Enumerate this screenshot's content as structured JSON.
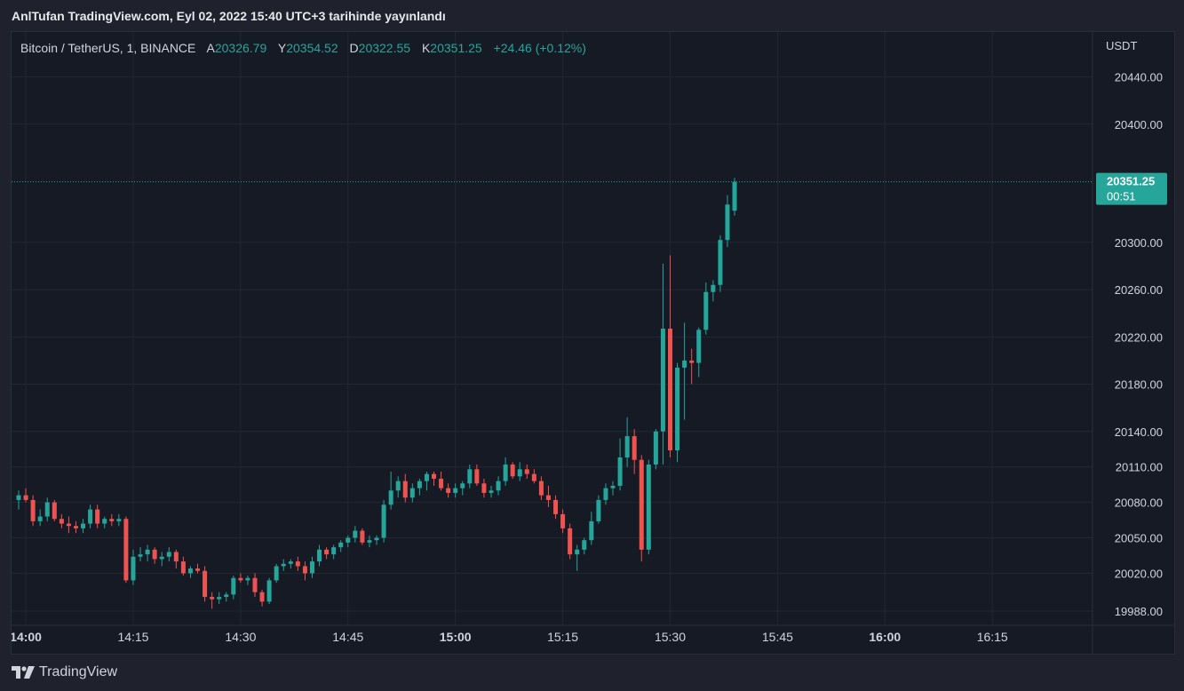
{
  "header": {
    "published_text": "AnlTufan TradingView.com, Eyl 02, 2022 15:40 UTC+3 tarihinde yayınlandı"
  },
  "symbol": {
    "name": "Bitcoin / TetherUS, 1, BINANCE",
    "open_label": "A",
    "open_value": "20326.79",
    "high_label": "Y",
    "high_value": "20354.52",
    "low_label": "D",
    "low_value": "20322.55",
    "close_label": "K",
    "close_value": "20351.25",
    "change": "+24.46 (+0.12%)"
  },
  "price_axis": {
    "currency": "USDT",
    "last_price": "20351.25",
    "countdown": "00:51"
  },
  "footer": {
    "brand": "TradingView"
  },
  "colors": {
    "up": "#26a69a",
    "down": "#ef5350",
    "grid": "#232733",
    "background": "#161a25",
    "last_price_line": "#26a69a"
  },
  "chart_data": {
    "type": "candlestick",
    "interval_minutes": 1,
    "ylim": [
      19976,
      20478
    ],
    "y_ticks": [
      "20440.00",
      "20400.00",
      "20300.00",
      "20260.00",
      "20220.00",
      "20180.00",
      "20140.00",
      "20110.00",
      "20080.00",
      "20050.00",
      "20020.00",
      "19988.00"
    ],
    "x_ticks": [
      {
        "time": "14:00",
        "bold": true
      },
      {
        "time": "14:15",
        "bold": false
      },
      {
        "time": "14:30",
        "bold": false
      },
      {
        "time": "14:45",
        "bold": false
      },
      {
        "time": "15:00",
        "bold": true
      },
      {
        "time": "15:15",
        "bold": false
      },
      {
        "time": "15:30",
        "bold": false
      },
      {
        "time": "15:45",
        "bold": false
      },
      {
        "time": "16:00",
        "bold": true
      },
      {
        "time": "16:15",
        "bold": false
      }
    ],
    "x_start": "13:59",
    "x_end": "16:28",
    "candles": [
      {
        "t": "13:59",
        "o": 20082,
        "h": 20090,
        "l": 20074,
        "c": 20086
      },
      {
        "t": "14:00",
        "o": 20086,
        "h": 20092,
        "l": 20080,
        "c": 20082
      },
      {
        "t": "14:01",
        "o": 20082,
        "h": 20086,
        "l": 20060,
        "c": 20064
      },
      {
        "t": "14:02",
        "o": 20064,
        "h": 20074,
        "l": 20060,
        "c": 20068
      },
      {
        "t": "14:03",
        "o": 20068,
        "h": 20084,
        "l": 20064,
        "c": 20080
      },
      {
        "t": "14:04",
        "o": 20080,
        "h": 20082,
        "l": 20064,
        "c": 20066
      },
      {
        "t": "14:05",
        "o": 20066,
        "h": 20070,
        "l": 20058,
        "c": 20062
      },
      {
        "t": "14:06",
        "o": 20062,
        "h": 20068,
        "l": 20054,
        "c": 20060
      },
      {
        "t": "14:07",
        "o": 20060,
        "h": 20064,
        "l": 20054,
        "c": 20058
      },
      {
        "t": "14:08",
        "o": 20058,
        "h": 20066,
        "l": 20054,
        "c": 20062
      },
      {
        "t": "14:09",
        "o": 20062,
        "h": 20078,
        "l": 20058,
        "c": 20074
      },
      {
        "t": "14:10",
        "o": 20074,
        "h": 20078,
        "l": 20058,
        "c": 20062
      },
      {
        "t": "14:11",
        "o": 20062,
        "h": 20068,
        "l": 20058,
        "c": 20066
      },
      {
        "t": "14:12",
        "o": 20066,
        "h": 20070,
        "l": 20060,
        "c": 20064
      },
      {
        "t": "14:13",
        "o": 20064,
        "h": 20070,
        "l": 20060,
        "c": 20066
      },
      {
        "t": "14:14",
        "o": 20066,
        "h": 20068,
        "l": 20012,
        "c": 20014
      },
      {
        "t": "14:15",
        "o": 20014,
        "h": 20040,
        "l": 20010,
        "c": 20034
      },
      {
        "t": "14:16",
        "o": 20034,
        "h": 20042,
        "l": 20030,
        "c": 20036
      },
      {
        "t": "14:17",
        "o": 20036,
        "h": 20044,
        "l": 20030,
        "c": 20040
      },
      {
        "t": "14:18",
        "o": 20040,
        "h": 20042,
        "l": 20028,
        "c": 20032
      },
      {
        "t": "14:19",
        "o": 20032,
        "h": 20038,
        "l": 20026,
        "c": 20034
      },
      {
        "t": "14:20",
        "o": 20034,
        "h": 20042,
        "l": 20030,
        "c": 20038
      },
      {
        "t": "14:21",
        "o": 20038,
        "h": 20040,
        "l": 20024,
        "c": 20030
      },
      {
        "t": "14:22",
        "o": 20030,
        "h": 20034,
        "l": 20018,
        "c": 20020
      },
      {
        "t": "14:23",
        "o": 20020,
        "h": 20026,
        "l": 20016,
        "c": 20024
      },
      {
        "t": "14:24",
        "o": 20024,
        "h": 20028,
        "l": 20020,
        "c": 20022
      },
      {
        "t": "14:25",
        "o": 20022,
        "h": 20026,
        "l": 19996,
        "c": 20000
      },
      {
        "t": "14:26",
        "o": 20000,
        "h": 20004,
        "l": 19990,
        "c": 19998
      },
      {
        "t": "14:27",
        "o": 19998,
        "h": 20004,
        "l": 19994,
        "c": 20000
      },
      {
        "t": "14:28",
        "o": 20000,
        "h": 20004,
        "l": 19996,
        "c": 20002
      },
      {
        "t": "14:29",
        "o": 20002,
        "h": 20018,
        "l": 19998,
        "c": 20016
      },
      {
        "t": "14:30",
        "o": 20016,
        "h": 20020,
        "l": 20012,
        "c": 20014
      },
      {
        "t": "14:31",
        "o": 20014,
        "h": 20018,
        "l": 20010,
        "c": 20016
      },
      {
        "t": "14:32",
        "o": 20016,
        "h": 20020,
        "l": 20000,
        "c": 20004
      },
      {
        "t": "14:33",
        "o": 20004,
        "h": 20006,
        "l": 19992,
        "c": 19996
      },
      {
        "t": "14:34",
        "o": 19996,
        "h": 20016,
        "l": 19994,
        "c": 20014
      },
      {
        "t": "14:35",
        "o": 20014,
        "h": 20028,
        "l": 20012,
        "c": 20026
      },
      {
        "t": "14:36",
        "o": 20026,
        "h": 20032,
        "l": 20022,
        "c": 20028
      },
      {
        "t": "14:37",
        "o": 20028,
        "h": 20032,
        "l": 20024,
        "c": 20030
      },
      {
        "t": "14:38",
        "o": 20030,
        "h": 20034,
        "l": 20022,
        "c": 20026
      },
      {
        "t": "14:39",
        "o": 20026,
        "h": 20030,
        "l": 20014,
        "c": 20020
      },
      {
        "t": "14:40",
        "o": 20020,
        "h": 20034,
        "l": 20016,
        "c": 20030
      },
      {
        "t": "14:41",
        "o": 20030,
        "h": 20044,
        "l": 20026,
        "c": 20040
      },
      {
        "t": "14:42",
        "o": 20040,
        "h": 20042,
        "l": 20032,
        "c": 20036
      },
      {
        "t": "14:43",
        "o": 20036,
        "h": 20044,
        "l": 20032,
        "c": 20042
      },
      {
        "t": "14:44",
        "o": 20042,
        "h": 20048,
        "l": 20038,
        "c": 20046
      },
      {
        "t": "14:45",
        "o": 20046,
        "h": 20052,
        "l": 20042,
        "c": 20050
      },
      {
        "t": "14:46",
        "o": 20050,
        "h": 20060,
        "l": 20046,
        "c": 20056
      },
      {
        "t": "14:47",
        "o": 20056,
        "h": 20058,
        "l": 20044,
        "c": 20046
      },
      {
        "t": "14:48",
        "o": 20046,
        "h": 20052,
        "l": 20042,
        "c": 20048
      },
      {
        "t": "14:49",
        "o": 20048,
        "h": 20052,
        "l": 20044,
        "c": 20050
      },
      {
        "t": "14:50",
        "o": 20050,
        "h": 20082,
        "l": 20046,
        "c": 20078
      },
      {
        "t": "14:51",
        "o": 20078,
        "h": 20106,
        "l": 20074,
        "c": 20090
      },
      {
        "t": "14:52",
        "o": 20090,
        "h": 20102,
        "l": 20084,
        "c": 20098
      },
      {
        "t": "14:53",
        "o": 20098,
        "h": 20104,
        "l": 20080,
        "c": 20084
      },
      {
        "t": "14:54",
        "o": 20084,
        "h": 20096,
        "l": 20080,
        "c": 20092
      },
      {
        "t": "14:55",
        "o": 20092,
        "h": 20100,
        "l": 20086,
        "c": 20098
      },
      {
        "t": "14:56",
        "o": 20098,
        "h": 20106,
        "l": 20090,
        "c": 20104
      },
      {
        "t": "14:57",
        "o": 20104,
        "h": 20106,
        "l": 20094,
        "c": 20100
      },
      {
        "t": "14:58",
        "o": 20100,
        "h": 20106,
        "l": 20090,
        "c": 20092
      },
      {
        "t": "14:59",
        "o": 20092,
        "h": 20096,
        "l": 20084,
        "c": 20088
      },
      {
        "t": "15:00",
        "o": 20088,
        "h": 20096,
        "l": 20084,
        "c": 20092
      },
      {
        "t": "15:01",
        "o": 20092,
        "h": 20098,
        "l": 20086,
        "c": 20096
      },
      {
        "t": "15:02",
        "o": 20096,
        "h": 20112,
        "l": 20092,
        "c": 20108
      },
      {
        "t": "15:03",
        "o": 20108,
        "h": 20112,
        "l": 20094,
        "c": 20096
      },
      {
        "t": "15:04",
        "o": 20096,
        "h": 20100,
        "l": 20084,
        "c": 20088
      },
      {
        "t": "15:05",
        "o": 20088,
        "h": 20094,
        "l": 20084,
        "c": 20090
      },
      {
        "t": "15:06",
        "o": 20090,
        "h": 20102,
        "l": 20086,
        "c": 20098
      },
      {
        "t": "15:07",
        "o": 20098,
        "h": 20118,
        "l": 20094,
        "c": 20112
      },
      {
        "t": "15:08",
        "o": 20112,
        "h": 20114,
        "l": 20100,
        "c": 20102
      },
      {
        "t": "15:09",
        "o": 20102,
        "h": 20114,
        "l": 20098,
        "c": 20108
      },
      {
        "t": "15:10",
        "o": 20108,
        "h": 20112,
        "l": 20100,
        "c": 20104
      },
      {
        "t": "15:11",
        "o": 20104,
        "h": 20108,
        "l": 20096,
        "c": 20098
      },
      {
        "t": "15:12",
        "o": 20098,
        "h": 20102,
        "l": 20082,
        "c": 20086
      },
      {
        "t": "15:13",
        "o": 20086,
        "h": 20094,
        "l": 20076,
        "c": 20082
      },
      {
        "t": "15:14",
        "o": 20082,
        "h": 20086,
        "l": 20066,
        "c": 20070
      },
      {
        "t": "15:15",
        "o": 20070,
        "h": 20074,
        "l": 20054,
        "c": 20058
      },
      {
        "t": "15:16",
        "o": 20058,
        "h": 20062,
        "l": 20032,
        "c": 20036
      },
      {
        "t": "15:17",
        "o": 20036,
        "h": 20044,
        "l": 20022,
        "c": 20040
      },
      {
        "t": "15:18",
        "o": 20040,
        "h": 20050,
        "l": 20036,
        "c": 20048
      },
      {
        "t": "15:19",
        "o": 20048,
        "h": 20072,
        "l": 20044,
        "c": 20064
      },
      {
        "t": "15:20",
        "o": 20064,
        "h": 20086,
        "l": 20062,
        "c": 20082
      },
      {
        "t": "15:21",
        "o": 20082,
        "h": 20096,
        "l": 20078,
        "c": 20092
      },
      {
        "t": "15:22",
        "o": 20092,
        "h": 20098,
        "l": 20086,
        "c": 20094
      },
      {
        "t": "15:23",
        "o": 20094,
        "h": 20134,
        "l": 20090,
        "c": 20118
      },
      {
        "t": "15:24",
        "o": 20118,
        "h": 20152,
        "l": 20110,
        "c": 20136
      },
      {
        "t": "15:25",
        "o": 20136,
        "h": 20142,
        "l": 20104,
        "c": 20116
      },
      {
        "t": "15:26",
        "o": 20116,
        "h": 20120,
        "l": 20030,
        "c": 20040
      },
      {
        "t": "15:27",
        "o": 20040,
        "h": 20116,
        "l": 20036,
        "c": 20112
      },
      {
        "t": "15:28",
        "o": 20112,
        "h": 20142,
        "l": 20108,
        "c": 20140
      },
      {
        "t": "15:29",
        "o": 20140,
        "h": 20282,
        "l": 20112,
        "c": 20227
      },
      {
        "t": "15:30",
        "o": 20227,
        "h": 20289,
        "l": 20118,
        "c": 20124
      },
      {
        "t": "15:31",
        "o": 20124,
        "h": 20198,
        "l": 20114,
        "c": 20194
      },
      {
        "t": "15:32",
        "o": 20194,
        "h": 20232,
        "l": 20150,
        "c": 20200
      },
      {
        "t": "15:33",
        "o": 20200,
        "h": 20210,
        "l": 20180,
        "c": 20198
      },
      {
        "t": "15:34",
        "o": 20198,
        "h": 20228,
        "l": 20186,
        "c": 20226
      },
      {
        "t": "15:35",
        "o": 20226,
        "h": 20266,
        "l": 20222,
        "c": 20258
      },
      {
        "t": "15:36",
        "o": 20258,
        "h": 20268,
        "l": 20250,
        "c": 20264
      },
      {
        "t": "15:37",
        "o": 20264,
        "h": 20306,
        "l": 20258,
        "c": 20302
      },
      {
        "t": "15:38",
        "o": 20302,
        "h": 20340,
        "l": 20296,
        "c": 20332
      },
      {
        "t": "15:39",
        "o": 20326.79,
        "h": 20354.52,
        "l": 20322.55,
        "c": 20351.25
      }
    ]
  }
}
